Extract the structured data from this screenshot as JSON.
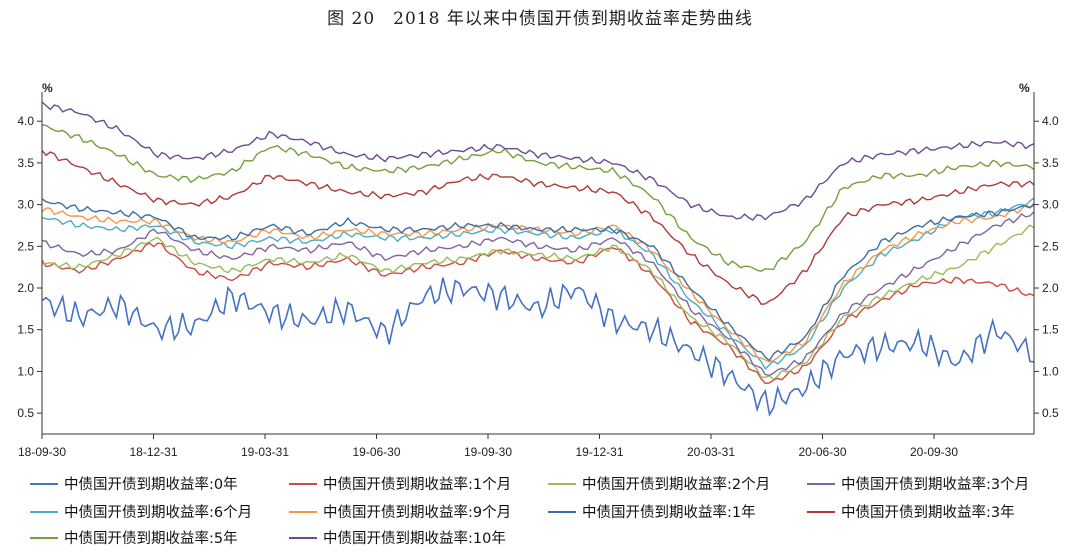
{
  "title": "图 20　2018 年以来中债国开债到期收益率走势曲线",
  "chart_data": {
    "type": "line",
    "title": "图 20　2018 年以来中债国开债到期收益率走势曲线",
    "ylabel_left": "%",
    "ylabel_right": "%",
    "ylim": [
      0.25,
      4.35
    ],
    "yticks": [
      "0.5",
      "1.0",
      "1.5",
      "2.0",
      "2.5",
      "3.0",
      "3.5",
      "4.0"
    ],
    "yticks_values": [
      0.5,
      1.0,
      1.5,
      2.0,
      2.5,
      3.0,
      3.5,
      4.0
    ],
    "xticks": [
      "18-09-30",
      "18-12-31",
      "19-03-31",
      "19-06-30",
      "19-09-30",
      "19-12-31",
      "20-03-31",
      "20-06-30",
      "20-09-30"
    ],
    "x": [
      "18-09-30",
      "18-10-31",
      "18-11-30",
      "18-12-31",
      "19-01-31",
      "19-02-28",
      "19-03-31",
      "19-04-30",
      "19-05-31",
      "19-06-30",
      "19-07-31",
      "19-08-31",
      "19-09-30",
      "19-10-31",
      "19-11-30",
      "19-12-31",
      "20-01-31",
      "20-02-29",
      "20-03-31",
      "20-04-30",
      "20-05-31",
      "20-06-30",
      "20-07-31",
      "20-08-31",
      "20-09-30",
      "20-10-31",
      "20-11-30"
    ],
    "legend_position": "bottom",
    "grid": false,
    "series": [
      {
        "name": "中债国开债到期收益率:0年",
        "color": "#4472C4",
        "values": [
          1.85,
          1.65,
          1.8,
          1.5,
          1.55,
          1.9,
          1.7,
          1.6,
          1.75,
          1.45,
          1.9,
          2.0,
          1.9,
          1.75,
          2.0,
          1.6,
          1.5,
          1.25,
          0.95,
          0.6,
          0.8,
          1.2,
          1.3,
          1.35,
          1.1,
          1.5,
          1.2
        ]
      },
      {
        "name": "中债国开债到期收益率:1个月",
        "color": "#D04A45",
        "values": [
          2.3,
          2.2,
          2.35,
          2.55,
          2.2,
          2.1,
          2.3,
          2.25,
          2.35,
          2.15,
          2.25,
          2.3,
          2.45,
          2.35,
          2.3,
          2.5,
          2.15,
          1.6,
          1.3,
          0.85,
          1.05,
          1.6,
          1.85,
          2.05,
          2.1,
          2.05,
          1.9
        ]
      },
      {
        "name": "中债国开债到期收益率:2个月",
        "color": "#9BBB59",
        "values": [
          2.3,
          2.25,
          2.4,
          2.6,
          2.3,
          2.2,
          2.35,
          2.3,
          2.4,
          2.2,
          2.3,
          2.35,
          2.45,
          2.4,
          2.35,
          2.5,
          2.2,
          1.65,
          1.35,
          0.9,
          1.1,
          1.65,
          1.9,
          2.1,
          2.25,
          2.5,
          2.75
        ]
      },
      {
        "name": "中债国开债到期收益率:3个月",
        "color": "#8064A2",
        "values": [
          2.55,
          2.4,
          2.45,
          2.7,
          2.45,
          2.35,
          2.5,
          2.45,
          2.55,
          2.35,
          2.45,
          2.5,
          2.6,
          2.5,
          2.45,
          2.6,
          2.3,
          1.75,
          1.4,
          0.95,
          1.15,
          1.7,
          2.0,
          2.25,
          2.5,
          2.75,
          2.9
        ]
      },
      {
        "name": "中债国开债到期收益率:6个月",
        "color": "#4BACC6",
        "values": [
          2.85,
          2.75,
          2.7,
          2.75,
          2.55,
          2.5,
          2.6,
          2.55,
          2.65,
          2.6,
          2.6,
          2.65,
          2.7,
          2.65,
          2.6,
          2.7,
          2.4,
          1.85,
          1.45,
          1.05,
          1.3,
          2.0,
          2.4,
          2.6,
          2.85,
          2.9,
          3.05
        ]
      },
      {
        "name": "中债国开债到期收益率:9个月",
        "color": "#F79646",
        "values": [
          2.95,
          2.85,
          2.8,
          2.8,
          2.6,
          2.55,
          2.7,
          2.6,
          2.7,
          2.65,
          2.65,
          2.7,
          2.75,
          2.7,
          2.65,
          2.75,
          2.45,
          1.95,
          1.5,
          1.1,
          1.35,
          2.05,
          2.45,
          2.65,
          2.8,
          2.85,
          3.0
        ]
      },
      {
        "name": "中债国开债到期收益率:1年",
        "color": "#3B6EA8",
        "values": [
          3.05,
          2.95,
          2.9,
          2.85,
          2.6,
          2.6,
          2.75,
          2.65,
          2.8,
          2.7,
          2.7,
          2.75,
          2.75,
          2.7,
          2.7,
          2.7,
          2.5,
          2.0,
          1.55,
          1.15,
          1.4,
          2.15,
          2.55,
          2.75,
          2.85,
          2.9,
          3.0
        ]
      },
      {
        "name": "中债国开债到期收益率:3年",
        "color": "#B03A37",
        "values": [
          3.65,
          3.45,
          3.25,
          3.05,
          3.0,
          3.1,
          3.35,
          3.25,
          3.15,
          3.1,
          3.15,
          3.3,
          3.35,
          3.25,
          3.2,
          3.15,
          2.85,
          2.4,
          2.05,
          1.8,
          2.2,
          2.85,
          3.0,
          3.05,
          3.15,
          3.25,
          3.25
        ]
      },
      {
        "name": "中债国开债到期收益率:5年",
        "color": "#779F3A",
        "values": [
          3.95,
          3.8,
          3.6,
          3.35,
          3.3,
          3.4,
          3.7,
          3.6,
          3.45,
          3.4,
          3.45,
          3.55,
          3.65,
          3.5,
          3.45,
          3.4,
          3.1,
          2.6,
          2.3,
          2.2,
          2.55,
          3.2,
          3.35,
          3.35,
          3.45,
          3.5,
          3.45
        ]
      },
      {
        "name": "中债国开债到期收益率:10年",
        "color": "#6A4C93",
        "values": [
          4.2,
          4.1,
          3.9,
          3.6,
          3.55,
          3.65,
          3.85,
          3.75,
          3.6,
          3.55,
          3.6,
          3.65,
          3.7,
          3.6,
          3.55,
          3.5,
          3.3,
          3.0,
          2.85,
          2.85,
          3.05,
          3.5,
          3.6,
          3.65,
          3.7,
          3.75,
          3.7
        ]
      }
    ]
  }
}
